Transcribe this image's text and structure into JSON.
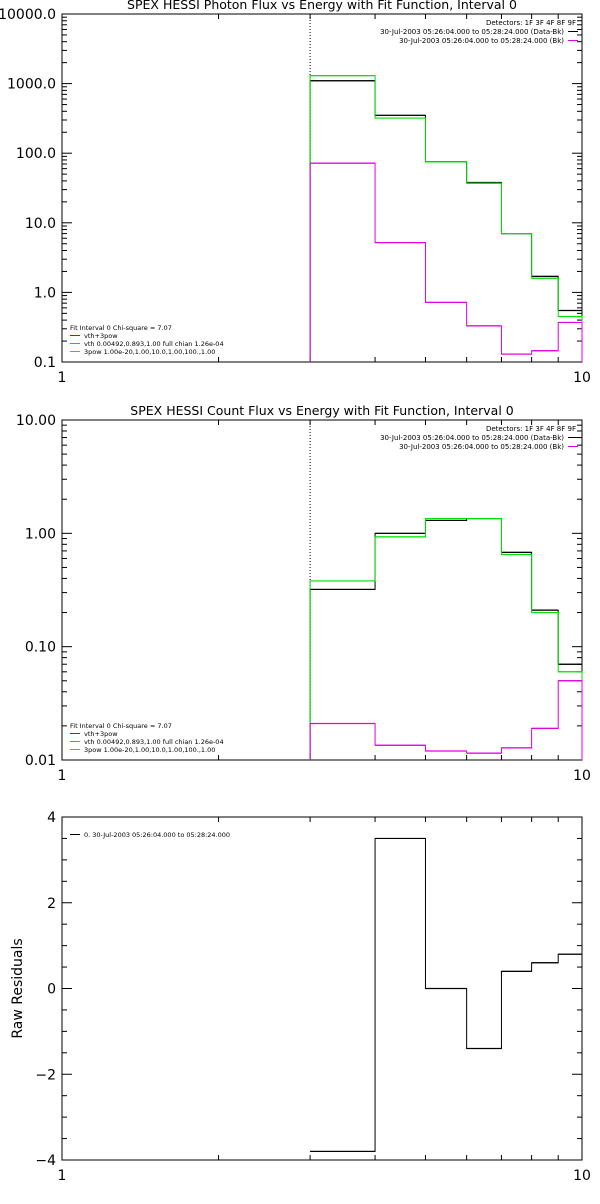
{
  "colors": {
    "black": "#000000",
    "magenta": "#e000e0",
    "green": "#00e000",
    "red": "#e00000",
    "orange": "#e08000"
  },
  "chart_data": [
    {
      "type": "line",
      "title": "SPEX HESSI Photon Flux vs Energy with Fit Function, Interval 0",
      "xlabel": "",
      "ylabel": "",
      "xscale": "log",
      "yscale": "log",
      "xlim": [
        1,
        10
      ],
      "ylim": [
        0.1,
        10000
      ],
      "xticks": [
        {
          "v": 1,
          "label": "1"
        },
        {
          "v": 10,
          "label": "10"
        }
      ],
      "yticks": [
        {
          "v": 0.1,
          "label": "0.1"
        },
        {
          "v": 1,
          "label": "1.0"
        },
        {
          "v": 10,
          "label": "10.0"
        },
        {
          "v": 100,
          "label": "100.0"
        },
        {
          "v": 1000,
          "label": "1000.0"
        },
        {
          "v": 10000,
          "label": "10000.0"
        }
      ],
      "vline": 3,
      "legend_top": {
        "placement": "top-right",
        "lines": [
          {
            "text": "Detectors: 1F 3F 4F 8F 9F",
            "color": ""
          },
          {
            "text": "30-Jul-2003 05:26:04.000 to 05:28:24.000 (Data-Bk)",
            "color": "black"
          },
          {
            "text": "30-Jul-2003 05:26:04.000 to 05:28:24.000 (Bk)",
            "color": "magenta"
          }
        ]
      },
      "legend_bottom": {
        "placement": "bottom-left",
        "lines": [
          {
            "text": "Fit Interval 0   Chi-square = 7.07",
            "color": ""
          },
          {
            "text": "vth+3pow",
            "color": "red"
          },
          {
            "text": "vth 0.00492,0.893,1.00  full chian 1.26e-04",
            "color": "green"
          },
          {
            "text": "3pow 1.00e-20,1.00,10.0,1.00,100.,1.00",
            "color": "orange"
          }
        ]
      },
      "bin_edges": [
        3,
        4,
        5,
        6,
        7,
        8,
        9,
        10
      ],
      "series": [
        {
          "color": "black",
          "values": [
            1100,
            350,
            75,
            38,
            7,
            1.7,
            0.55
          ]
        },
        {
          "color": "green",
          "values": [
            1300,
            320,
            75,
            37,
            7,
            1.6,
            0.45
          ]
        },
        {
          "color": "magenta",
          "values": [
            72,
            5.2,
            0.72,
            0.33,
            0.13,
            0.145,
            0.37
          ]
        }
      ]
    },
    {
      "type": "line",
      "title": "SPEX HESSI Count Flux vs Energy with Fit Function, Interval 0",
      "xlabel": "",
      "ylabel": "",
      "xscale": "log",
      "yscale": "log",
      "xlim": [
        1,
        10
      ],
      "ylim": [
        0.01,
        10
      ],
      "xticks": [
        {
          "v": 1,
          "label": "1"
        },
        {
          "v": 10,
          "label": "10"
        }
      ],
      "yticks": [
        {
          "v": 0.01,
          "label": "0.01"
        },
        {
          "v": 0.1,
          "label": "0.10"
        },
        {
          "v": 1,
          "label": "1.00"
        },
        {
          "v": 10,
          "label": "10.00"
        }
      ],
      "vline": 3,
      "legend_top": {
        "placement": "top-right",
        "lines": [
          {
            "text": "Detectors: 1F 3F 4F 8F 9F",
            "color": ""
          },
          {
            "text": "30-Jul-2003 05:26:04.000 to 05:28:24.000 (Data-Bk)",
            "color": "black"
          },
          {
            "text": "30-Jul-2003 05:26:04.000 to 05:28:24.000 (Bk)",
            "color": "magenta"
          }
        ]
      },
      "legend_bottom": {
        "placement": "bottom-left",
        "lines": [
          {
            "text": "Fit Interval 0   Chi-square = 7.07",
            "color": ""
          },
          {
            "text": "vth+3pow",
            "color": "red"
          },
          {
            "text": "vth 0.00492,0.893,1.00  full chian 1.26e-04",
            "color": "green"
          },
          {
            "text": "3pow 1.00e-20,1.00,10.0,1.00,100.,1.00",
            "color": "orange"
          }
        ]
      },
      "bin_edges": [
        3,
        4,
        5,
        6,
        7,
        8,
        9,
        10
      ],
      "series": [
        {
          "color": "black",
          "values": [
            0.32,
            1.0,
            1.3,
            1.35,
            0.68,
            0.21,
            0.07
          ]
        },
        {
          "color": "green",
          "values": [
            0.38,
            0.93,
            1.35,
            1.35,
            0.65,
            0.2,
            0.06
          ]
        },
        {
          "color": "magenta",
          "values": [
            0.021,
            0.0135,
            0.012,
            0.0115,
            0.0128,
            0.019,
            0.05
          ]
        }
      ]
    },
    {
      "type": "line",
      "title": "",
      "xlabel": "",
      "ylabel": "Raw Residuals",
      "xscale": "log",
      "yscale": "linear",
      "xlim": [
        1,
        10
      ],
      "ylim": [
        -4,
        4
      ],
      "xticks": [
        {
          "v": 1,
          "label": "1"
        },
        {
          "v": 10,
          "label": "10"
        }
      ],
      "yticks": [
        {
          "v": -4,
          "label": "−4"
        },
        {
          "v": -2,
          "label": "−2"
        },
        {
          "v": 0,
          "label": "0"
        },
        {
          "v": 2,
          "label": "2"
        },
        {
          "v": 4,
          "label": "4"
        }
      ],
      "legend_top": {
        "placement": "top-left",
        "lines": [
          {
            "text": "0. 30-Jul-2003 05:26:04.000 to 05:28:24.000",
            "color": "black"
          }
        ]
      },
      "bin_edges": [
        3,
        4,
        5,
        6,
        7,
        8,
        9,
        10
      ],
      "series": [
        {
          "color": "black",
          "values": [
            -3.8,
            3.5,
            0.0,
            -1.4,
            0.4,
            0.6,
            0.8
          ]
        }
      ]
    }
  ]
}
